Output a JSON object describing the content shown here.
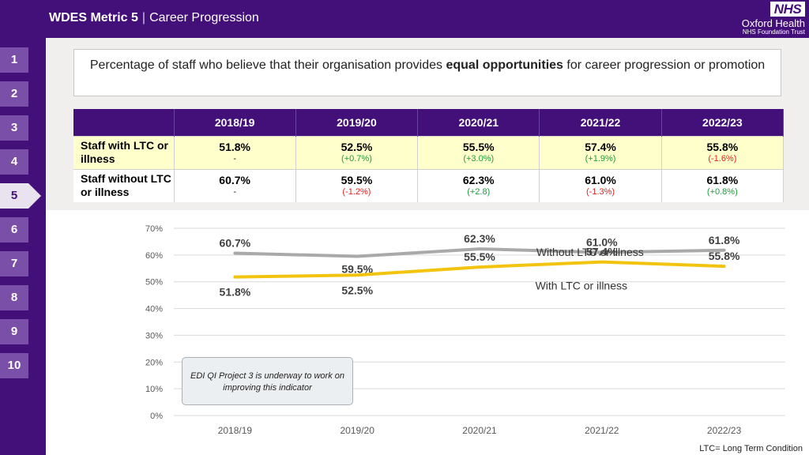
{
  "header": {
    "title_main": "WDES Metric 5",
    "separator": "|",
    "title_sub": "Career Progression",
    "logo_text": "NHS",
    "org_name": "Oxford Health",
    "org_sub": "NHS Foundation Trust"
  },
  "nav": {
    "items": [
      "1",
      "2",
      "3",
      "4",
      "5",
      "6",
      "7",
      "8",
      "9",
      "10"
    ],
    "active": "5"
  },
  "question": {
    "before": "Percentage of staff who believe that their organisation provides ",
    "emphasis": "equal opportunities",
    "after": " for career progression or promotion"
  },
  "table": {
    "headers": [
      "",
      "2018/19",
      "2019/20",
      "2020/21",
      "2021/22",
      "2022/23"
    ],
    "rows": [
      {
        "label": "Staff with LTC or illness",
        "values": [
          "51.8%",
          "52.5%",
          "55.5%",
          "57.4%",
          "55.8%"
        ],
        "changes": [
          "-",
          "(+0.7%)",
          "(+3.0%)",
          "(+1.9%)",
          "(-1.6%)"
        ]
      },
      {
        "label": "Staff without LTC or illness",
        "values": [
          "60.7%",
          "59.5%",
          "62.3%",
          "61.0%",
          "61.8%"
        ],
        "changes": [
          "-",
          "(-1.2%)",
          "(+2.8)",
          "(-1.3%)",
          "(+0.8%)"
        ]
      }
    ]
  },
  "colors": {
    "purple": "#43107a",
    "nav_item": "#7a4fa8",
    "positive": "#1e9b3c",
    "negative": "#e02020",
    "neutral": "#222222",
    "series_without": "#a9a9a9",
    "series_with": "#f2c40f"
  },
  "chart_data": {
    "type": "line",
    "categories": [
      "2018/19",
      "2019/20",
      "2020/21",
      "2021/22",
      "2022/23"
    ],
    "ylim": [
      0,
      70
    ],
    "yticks": [
      "0%",
      "10%",
      "20%",
      "30%",
      "40%",
      "50%",
      "60%",
      "70%"
    ],
    "series": [
      {
        "name": "Without LTC or illness",
        "values": [
          60.7,
          59.5,
          62.3,
          61.0,
          61.8
        ],
        "labels": [
          "60.7%",
          "59.5%",
          "62.3%",
          "61.0%",
          "61.8%"
        ],
        "color": "#a9a9a9"
      },
      {
        "name": "With LTC or illness",
        "values": [
          51.8,
          52.5,
          55.5,
          57.4,
          55.8
        ],
        "labels": [
          "51.8%",
          "52.5%",
          "55.5%",
          "57.4%",
          "55.8%"
        ],
        "color": "#f2c40f"
      }
    ],
    "grid": true,
    "legend": "inline labels"
  },
  "callout": "EDI QI Project 3 is underway to work on improving this indicator",
  "footnote": "LTC= Long Term Condition"
}
